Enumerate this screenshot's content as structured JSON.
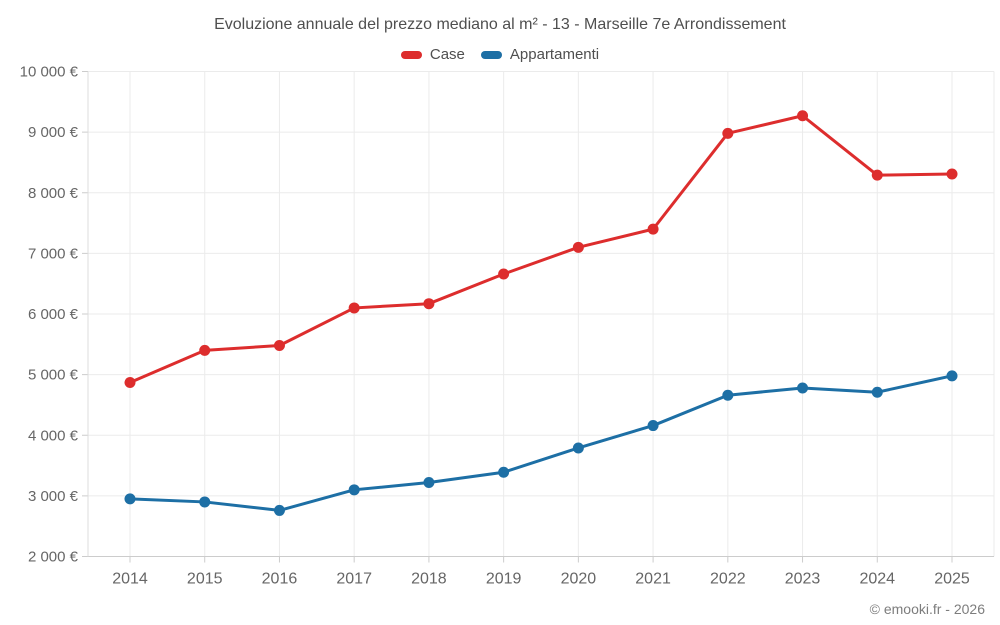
{
  "title": "Evoluzione annuale del prezzo mediano al m² - 13 - Marseille 7e Arrondissement",
  "footer": "© emooki.fr - 2026",
  "legend": [
    {
      "label": "Case",
      "color": "#dd2d2d"
    },
    {
      "label": "Appartamenti",
      "color": "#1d6fa5"
    }
  ],
  "chart_data": {
    "type": "line",
    "title": "Evoluzione annuale del prezzo mediano al m² - 13 - Marseille 7e Arrondissement",
    "xlabel": "",
    "ylabel": "",
    "categories": [
      "2014",
      "2015",
      "2016",
      "2017",
      "2018",
      "2019",
      "2020",
      "2021",
      "2022",
      "2023",
      "2024",
      "2025"
    ],
    "series": [
      {
        "name": "Case",
        "color": "#dd2d2d",
        "values": [
          4870,
          5400,
          5480,
          6100,
          6170,
          6660,
          7100,
          7400,
          8980,
          9270,
          8290,
          8310
        ]
      },
      {
        "name": "Appartamenti",
        "color": "#1d6fa5",
        "values": [
          2950,
          2900,
          2760,
          3100,
          3220,
          3390,
          3790,
          4160,
          4660,
          4780,
          4710,
          4980
        ]
      }
    ],
    "ylim": [
      2000,
      10000
    ],
    "y_ticks": {
      "values": [
        2000,
        3000,
        4000,
        5000,
        6000,
        7000,
        8000,
        9000,
        10000
      ],
      "labels": [
        "2 000 €",
        "3 000 €",
        "4 000 €",
        "5 000 €",
        "6 000 €",
        "7 000 €",
        "8 000 €",
        "9 000 €",
        "10 000 €"
      ]
    },
    "grid": true,
    "legend_position": "top"
  }
}
